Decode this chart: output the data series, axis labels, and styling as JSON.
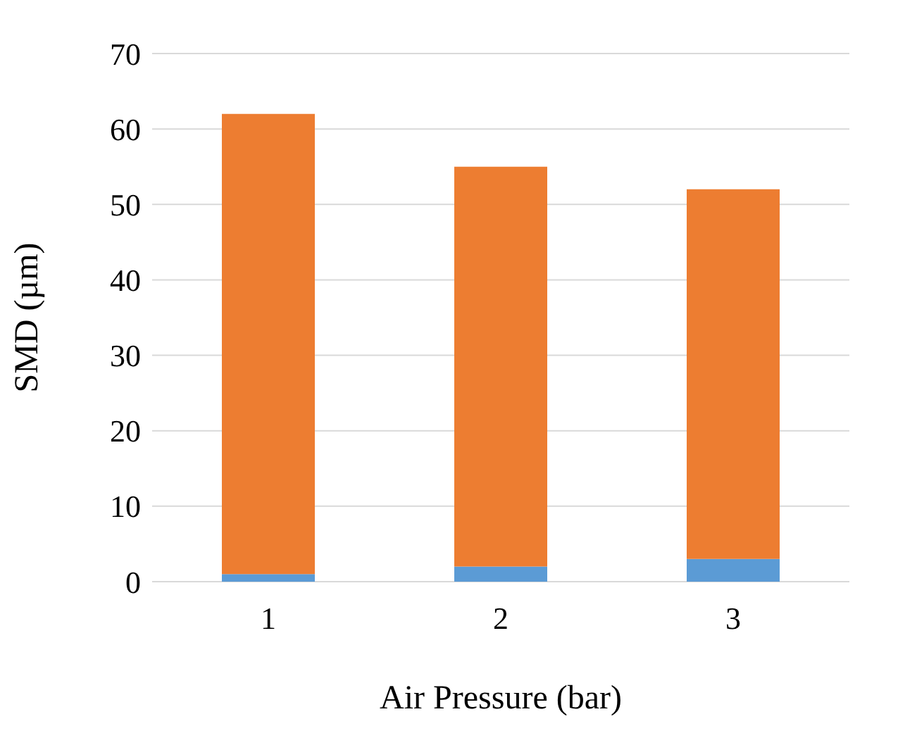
{
  "chart_data": {
    "type": "bar",
    "xlabel": "Air Pressure (bar)",
    "ylabel": "SMD (µm)",
    "categories": [
      "1",
      "2",
      "3"
    ],
    "stacked": true,
    "series": [
      {
        "color": "#5b9bd5",
        "values": [
          1,
          2,
          3
        ]
      },
      {
        "color": "#ed7d31",
        "values": [
          61,
          53,
          49
        ]
      }
    ],
    "ylim": [
      0,
      70
    ],
    "yticks": [
      0,
      10,
      20,
      30,
      40,
      50,
      60,
      70
    ],
    "grid": "y"
  }
}
